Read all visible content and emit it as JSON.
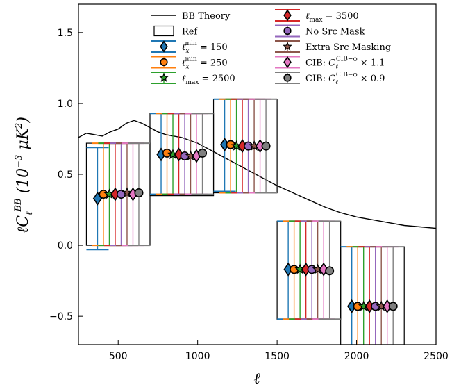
{
  "chart_data": {
    "type": "scatter",
    "xlabel": "ℓ",
    "ylabel": "ℓC_ℓ^BB (10⁻³ μK²)",
    "xlim": [
      250,
      2500
    ],
    "ylim": [
      -0.7,
      1.7
    ],
    "xticks": [
      500,
      1000,
      1500,
      2000,
      2500
    ],
    "yticks": [
      -0.5,
      0.0,
      0.5,
      1.0,
      1.5
    ],
    "xtick_labels": [
      "500",
      "1000",
      "1500",
      "2000",
      "2500"
    ],
    "ytick_labels": [
      "−0.5",
      "0.0",
      "0.5",
      "1.0",
      "1.5"
    ],
    "grid": false,
    "legend_placement": "top-center",
    "theory": {
      "name": "BB Theory",
      "x": [
        250,
        300,
        350,
        400,
        450,
        500,
        550,
        600,
        650,
        700,
        750,
        800,
        850,
        900,
        950,
        1000,
        1050,
        1100,
        1150,
        1200,
        1250,
        1300,
        1350,
        1400,
        1450,
        1500,
        1600,
        1700,
        1800,
        1900,
        2000,
        2100,
        2200,
        2300,
        2400,
        2500
      ],
      "y": [
        0.76,
        0.79,
        0.78,
        0.77,
        0.8,
        0.82,
        0.86,
        0.88,
        0.86,
        0.83,
        0.8,
        0.78,
        0.77,
        0.76,
        0.74,
        0.72,
        0.69,
        0.66,
        0.63,
        0.6,
        0.57,
        0.54,
        0.51,
        0.48,
        0.45,
        0.42,
        0.37,
        0.32,
        0.27,
        0.23,
        0.2,
        0.18,
        0.16,
        0.14,
        0.13,
        0.12
      ]
    },
    "bandpowers": [
      {
        "lmin": 300,
        "lmax": 700,
        "value": 0.36,
        "upper": 0.72,
        "lower": 0.0
      },
      {
        "lmin": 700,
        "lmax": 1100,
        "value": 0.64,
        "upper": 0.93,
        "lower": 0.35
      },
      {
        "lmin": 1100,
        "lmax": 1500,
        "value": 0.7,
        "upper": 1.03,
        "lower": 0.37
      },
      {
        "lmin": 1500,
        "lmax": 1900,
        "value": -0.17,
        "upper": 0.17,
        "lower": -0.52
      },
      {
        "lmin": 1900,
        "lmax": 2300,
        "value": -0.43,
        "upper": -0.01,
        "lower": -0.72
      }
    ],
    "series": [
      {
        "name": "ℓ_x^min = 150",
        "color": "#1f77b4",
        "marker": "diamond",
        "values": [
          0.33,
          0.64,
          0.71,
          -0.17,
          -0.43
        ],
        "upper": [
          0.69,
          0.93,
          1.03,
          0.17,
          -0.01
        ],
        "lower": [
          -0.03,
          0.36,
          0.38,
          -0.52,
          -0.72
        ]
      },
      {
        "name": "ℓ_x^min = 250",
        "color": "#ff7f0e",
        "marker": "circle",
        "values": [
          0.36,
          0.65,
          0.71,
          -0.17,
          -0.43
        ],
        "upper": [
          0.72,
          0.93,
          1.03,
          0.17,
          -0.01
        ],
        "lower": [
          0.0,
          0.36,
          0.37,
          -0.52,
          -0.72
        ]
      },
      {
        "name": "ℓ_max = 2500",
        "color": "#2ca02c",
        "marker": "star",
        "values": [
          0.36,
          0.64,
          0.7,
          -0.17,
          -0.43
        ],
        "upper": [
          0.72,
          0.93,
          1.03,
          0.17,
          -0.01
        ],
        "lower": [
          0.0,
          0.36,
          0.37,
          -0.52,
          -0.72
        ]
      },
      {
        "name": "ℓ_max = 3500",
        "color": "#d62728",
        "marker": "diamond",
        "values": [
          0.36,
          0.64,
          0.7,
          -0.17,
          -0.43
        ],
        "upper": [
          0.72,
          0.93,
          1.03,
          0.17,
          -0.01
        ],
        "lower": [
          0.0,
          0.36,
          0.37,
          -0.52,
          -0.72
        ]
      },
      {
        "name": "No Src Mask",
        "color": "#9467bd",
        "marker": "circle",
        "values": [
          0.36,
          0.63,
          0.7,
          -0.17,
          -0.43
        ],
        "upper": [
          0.72,
          0.93,
          1.03,
          0.17,
          -0.01
        ],
        "lower": [
          0.0,
          0.36,
          0.37,
          -0.52,
          -0.72
        ]
      },
      {
        "name": "Extra Src Masking",
        "color": "#8c564b",
        "marker": "star",
        "values": [
          0.37,
          0.63,
          0.7,
          -0.17,
          -0.43
        ],
        "upper": [
          0.72,
          0.93,
          1.03,
          0.17,
          -0.01
        ],
        "lower": [
          0.0,
          0.36,
          0.37,
          -0.52,
          -0.72
        ]
      },
      {
        "name": "CIB: C_ℓ^CIB-ϕ × 1.1",
        "color": "#e377c2",
        "marker": "diamond",
        "values": [
          0.36,
          0.63,
          0.7,
          -0.17,
          -0.43
        ],
        "upper": [
          0.72,
          0.93,
          1.03,
          0.17,
          -0.01
        ],
        "lower": [
          0.0,
          0.36,
          0.37,
          -0.52,
          -0.72
        ]
      },
      {
        "name": "CIB: C_ℓ^CIB-ϕ × 0.9",
        "color": "#7f7f7f",
        "marker": "circle",
        "values": [
          0.37,
          0.65,
          0.7,
          -0.18,
          -0.43
        ],
        "upper": [
          0.72,
          0.93,
          1.03,
          0.17,
          -0.01
        ],
        "lower": [
          0.0,
          0.36,
          0.37,
          -0.52,
          -0.72
        ]
      }
    ],
    "legend": {
      "col1": [
        "BB Theory",
        "Ref",
        "ℓ_x^min = 150",
        "ℓ_x^min = 250",
        "ℓ_max = 2500"
      ],
      "col2": [
        "ℓ_max = 3500",
        "No Src Mask",
        "Extra Src Masking",
        "CIB: C_ℓ^CIB-ϕ × 1.1",
        "CIB: C_ℓ^CIB-ϕ × 0.9"
      ]
    }
  }
}
